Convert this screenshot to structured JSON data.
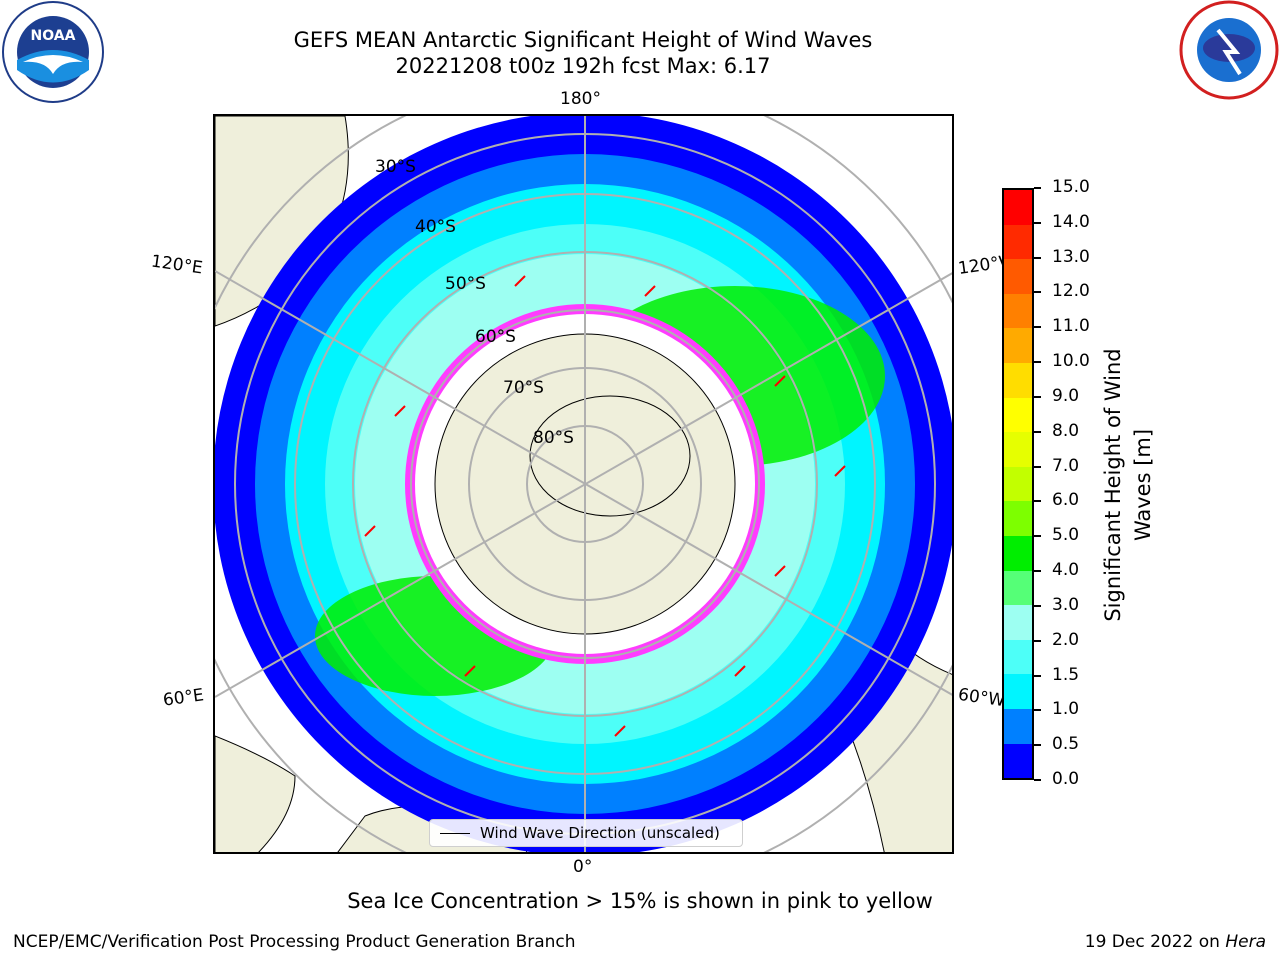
{
  "title": {
    "line1": "GEFS MEAN Antarctic Significant Height of Wind Waves",
    "line2": "20221208 t00z 192h fcst   Max: 6.17"
  },
  "map": {
    "longitude_labels": {
      "top": "180°",
      "bottom": "0°",
      "upper_left": "120°E",
      "lower_left": "60°E",
      "upper_right": "120°W",
      "lower_right": "60°W"
    },
    "latitude_labels": [
      "30°S",
      "40°S",
      "50°S",
      "60°S",
      "70°S",
      "80°S"
    ],
    "legend_label": "Wind Wave Direction (unscaled)"
  },
  "colorbar": {
    "title_line1": "Significant Height of Wind",
    "title_line2": "Waves [m]",
    "ticks": [
      "15.0",
      "14.0",
      "13.0",
      "12.0",
      "11.0",
      "10.0",
      "9.0",
      "8.0",
      "7.0",
      "6.0",
      "5.0",
      "4.0",
      "3.0",
      "2.0",
      "1.5",
      "1.0",
      "0.5",
      "0.0"
    ],
    "colors": [
      "#ff0000",
      "#ff2a00",
      "#ff5a00",
      "#ff8000",
      "#ffaa00",
      "#ffdd00",
      "#ffff00",
      "#e6ff00",
      "#c2ff00",
      "#7dff00",
      "#00ee00",
      "#55ff77",
      "#9dfff2",
      "#4dfff8",
      "#00f5ff",
      "#0080ff",
      "#0000ff"
    ]
  },
  "sea_ice_note": "Sea Ice Concentration > 15% is shown in pink to yellow",
  "footer": {
    "left": "NCEP/EMC/Verification Post Processing Product Generation Branch",
    "right_prefix": "19 Dec 2022 on ",
    "right_host": "Hera"
  },
  "logos": {
    "left_icon": "noaa-logo-icon",
    "left_text": "NOAA",
    "right_icon": "national-weather-service-logo-icon"
  }
}
